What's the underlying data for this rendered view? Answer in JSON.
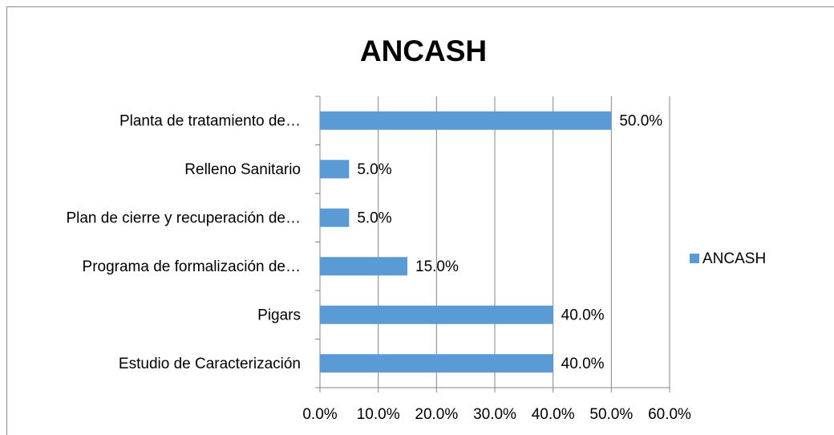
{
  "chart_data": {
    "type": "bar",
    "orientation": "horizontal",
    "title": "ANCASH",
    "categories": [
      "Planta de tratamiento de…",
      "Relleno Sanitario",
      "Plan de cierre y recuperación de…",
      "Programa de formalización de…",
      "Pigars",
      "Estudio de Caracterización"
    ],
    "series": [
      {
        "name": "ANCASH",
        "color": "#5b9bd5",
        "values": [
          50,
          5,
          5,
          15,
          40,
          40
        ],
        "value_labels": [
          "50.0%",
          "5.0%",
          "5.0%",
          "15.0%",
          "40.0%",
          "40.0%"
        ]
      }
    ],
    "xlim": [
      0,
      60
    ],
    "xticks": [
      {
        "value": 0,
        "label": "0.0%"
      },
      {
        "value": 10,
        "label": "10.0%"
      },
      {
        "value": 20,
        "label": "20.0%"
      },
      {
        "value": 30,
        "label": "30.0%"
      },
      {
        "value": 40,
        "label": "40.0%"
      },
      {
        "value": 50,
        "label": "50.0%"
      },
      {
        "value": 60,
        "label": "60.0%"
      }
    ],
    "grid": true,
    "legend": "right"
  }
}
